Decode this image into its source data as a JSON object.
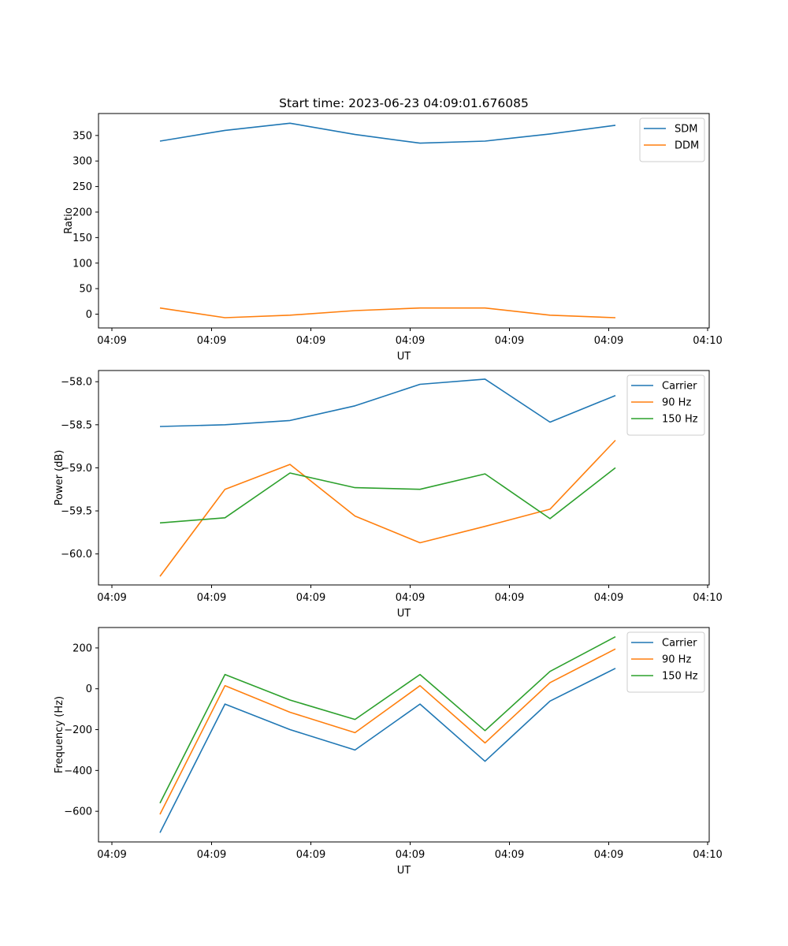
{
  "figure": {
    "title": "Start time: 2023-06-23 04:09:01.676085"
  },
  "colors": {
    "blue": "#1f77b4",
    "orange": "#ff7f0e",
    "green": "#2ca02c"
  },
  "chart_data": [
    {
      "type": "line",
      "title": "Start time: 2023-06-23 04:09:01.676085",
      "xlabel": "UT",
      "ylabel": "Ratio",
      "x_tick_labels": [
        "04:09",
        "04:09",
        "04:09",
        "04:09",
        "04:09",
        "04:09",
        "04:10"
      ],
      "y_ticks": [
        0,
        50,
        100,
        150,
        200,
        250,
        300,
        350
      ],
      "ylim": [
        -27,
        393
      ],
      "legend": "upper right",
      "series": [
        {
          "name": "SDM",
          "color": "blue",
          "values": [
            339,
            360,
            374,
            352,
            335,
            339,
            353,
            370
          ]
        },
        {
          "name": "DDM",
          "color": "orange",
          "values": [
            12,
            -7,
            -2,
            7,
            12,
            12,
            -2,
            -7
          ]
        }
      ]
    },
    {
      "type": "line",
      "xlabel": "UT",
      "ylabel": "Power (dB)",
      "x_tick_labels": [
        "04:09",
        "04:09",
        "04:09",
        "04:09",
        "04:09",
        "04:09",
        "04:10"
      ],
      "y_ticks": [
        -60.0,
        -59.5,
        -59.0,
        -58.5,
        -58.0
      ],
      "y_tick_labels": [
        "−60.0",
        "−59.5",
        "−59.0",
        "−58.5",
        "−58.0"
      ],
      "ylim": [
        -60.36,
        -57.87
      ],
      "legend": "upper right",
      "series": [
        {
          "name": "Carrier",
          "color": "blue",
          "values": [
            -58.52,
            -58.5,
            -58.45,
            -58.28,
            -58.03,
            -57.97,
            -58.47,
            -58.16
          ]
        },
        {
          "name": "90 Hz",
          "color": "orange",
          "values": [
            -60.26,
            -59.25,
            -58.96,
            -59.56,
            -59.87,
            -59.68,
            -59.48,
            -58.68
          ]
        },
        {
          "name": "150 Hz",
          "color": "green",
          "values": [
            -59.64,
            -59.58,
            -59.06,
            -59.23,
            -59.25,
            -59.07,
            -59.59,
            -59.0
          ]
        }
      ]
    },
    {
      "type": "line",
      "xlabel": "UT",
      "ylabel": "Frequency (Hz)",
      "x_tick_labels": [
        "04:09",
        "04:09",
        "04:09",
        "04:09",
        "04:09",
        "04:09",
        "04:10"
      ],
      "y_ticks": [
        -600,
        -400,
        -200,
        0,
        200
      ],
      "y_tick_labels": [
        "−600",
        "−400",
        "−200",
        "0",
        "200"
      ],
      "ylim": [
        -750,
        300
      ],
      "legend": "upper right",
      "series": [
        {
          "name": "Carrier",
          "color": "blue",
          "values": [
            -705,
            -75,
            -200,
            -300,
            -75,
            -355,
            -60,
            100
          ]
        },
        {
          "name": "90 Hz",
          "color": "orange",
          "values": [
            -615,
            15,
            -115,
            -215,
            15,
            -265,
            30,
            195
          ]
        },
        {
          "name": "150 Hz",
          "color": "green",
          "values": [
            -560,
            70,
            -55,
            -150,
            70,
            -205,
            85,
            255
          ]
        }
      ]
    }
  ]
}
